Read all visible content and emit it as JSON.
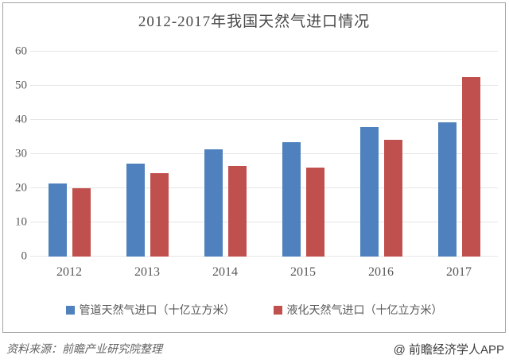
{
  "chart_data": {
    "type": "bar",
    "title": "2012-2017年我国天然气进口情况",
    "categories": [
      "2012",
      "2013",
      "2014",
      "2015",
      "2016",
      "2017"
    ],
    "series": [
      {
        "key": "pipeline",
        "name": "管道天然气进口（十亿立方米）",
        "color": "#4E81BD",
        "values": [
          21.4,
          27.3,
          31.3,
          33.6,
          38.0,
          39.4
        ]
      },
      {
        "key": "lng",
        "name": "液化天然气进口（十亿立方米）",
        "color": "#C0504D",
        "values": [
          20.0,
          24.5,
          26.5,
          26.0,
          34.2,
          52.6
        ]
      }
    ],
    "xlabel": "",
    "ylabel": "",
    "ylim": [
      0,
      60
    ],
    "ytick_step": 10,
    "grid": true,
    "legend_position": "bottom"
  },
  "footer": {
    "source": "资料来源：前瞻产业研究院整理",
    "brand": "@ 前瞻经济学人APP"
  }
}
